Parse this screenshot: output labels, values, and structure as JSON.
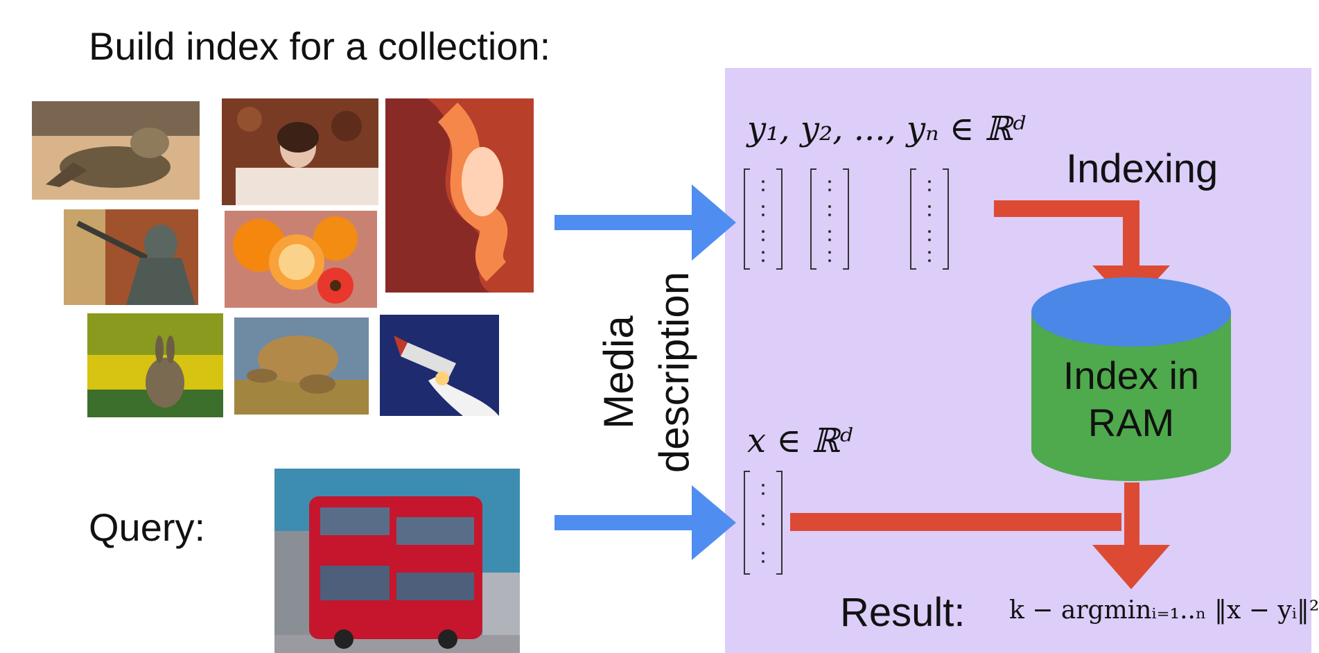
{
  "headings": {
    "build_index": "Build index for a collection:",
    "query": "Query:"
  },
  "media_label": {
    "line1": "Media",
    "line2": "description"
  },
  "math": {
    "collection_vectors": "y₁, y₂, ..., yₙ ∈ ℝᵈ",
    "query_vector": "x ∈ ℝᵈ",
    "result_formula": "k − argminᵢ₌₁..ₙ ‖x − yᵢ‖²"
  },
  "labels": {
    "indexing": "Indexing",
    "index_line1": "Index in",
    "index_line2": "RAM",
    "result": "Result:"
  },
  "collection_images": [
    {
      "name": "iguana",
      "colors": [
        "#d9b48a",
        "#6b5a40"
      ]
    },
    {
      "name": "woman-on-leaves",
      "colors": [
        "#7a3b24",
        "#efe2d8"
      ]
    },
    {
      "name": "red-canyon",
      "colors": [
        "#b8402a",
        "#f6874a"
      ]
    },
    {
      "name": "statue",
      "colors": [
        "#a0522d",
        "#5b6660"
      ]
    },
    {
      "name": "oranges-and-flower",
      "colors": [
        "#c98272",
        "#f5870f"
      ]
    },
    {
      "name": "rabbit",
      "colors": [
        "#d7c312",
        "#3c6e2c"
      ]
    },
    {
      "name": "sea-turtle",
      "colors": [
        "#6f8aa3",
        "#a2853f"
      ]
    },
    {
      "name": "space-shuttle-launch",
      "colors": [
        "#1e2c6f",
        "#f2f2f2"
      ]
    }
  ],
  "query_image": {
    "name": "red-double-decker-bus",
    "colors": [
      "#3d8db1",
      "#c5162d"
    ]
  },
  "colors": {
    "panel": "#dccdf9",
    "blue_arrow": "#4f8ef0",
    "red_arrow": "#dc4a34",
    "cylinder_body": "#4eaa4c",
    "cylinder_top": "#4a87e6"
  }
}
